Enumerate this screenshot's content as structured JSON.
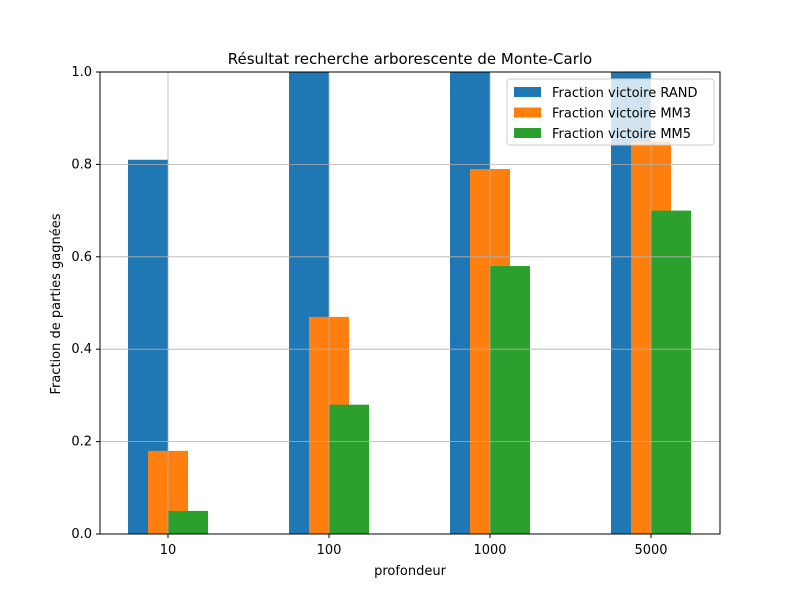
{
  "chart_data": {
    "type": "bar",
    "title": "Résultat recherche arborescente de Monte-Carlo",
    "xlabel": "profondeur",
    "ylabel": "Fraction de parties gagnées",
    "categories": [
      "10",
      "100",
      "1000",
      "5000"
    ],
    "ylim": [
      0,
      1.0
    ],
    "yticks": [
      "0.0",
      "0.2",
      "0.4",
      "0.6",
      "0.8",
      "1.0"
    ],
    "grid": true,
    "legend_position": "top-right",
    "series": [
      {
        "name": "Fraction victoire RAND",
        "color": "#1f77b4",
        "values": [
          0.81,
          1.0,
          1.0,
          1.0
        ]
      },
      {
        "name": "Fraction victoire MM3",
        "color": "#ff7f0e",
        "values": [
          0.18,
          0.47,
          0.79,
          0.85
        ]
      },
      {
        "name": "Fraction victoire MM5",
        "color": "#2ca02c",
        "values": [
          0.05,
          0.28,
          0.58,
          0.7
        ]
      }
    ]
  }
}
